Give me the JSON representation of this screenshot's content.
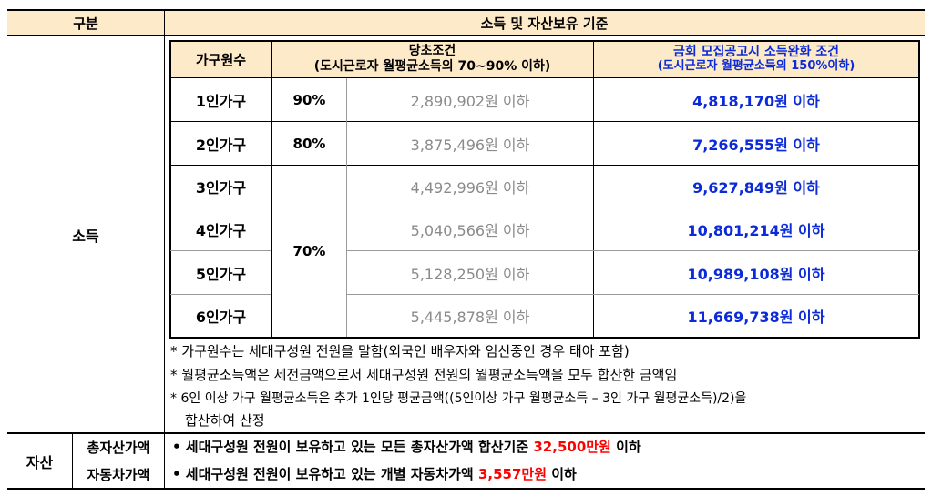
{
  "header": {
    "category": "구분",
    "criteria": "소득 및 자산보유 기준"
  },
  "income": {
    "label": "소득",
    "table_headers": {
      "household": "가구원수",
      "original_line1": "당초조건",
      "original_line2": "(도시근로자 월평균소득의 70~90% 이하)",
      "relaxed_line1": "금회 모집공고시 소득완화 조건",
      "relaxed_line2": "(도시근로자 월평균소득의 150%이하)"
    },
    "rows": [
      {
        "household": "1인가구",
        "original": "2,890,902원 이하",
        "relaxed": "4,818,170원 이하"
      },
      {
        "household": "2인가구",
        "original": "3,875,496원 이하",
        "relaxed": "7,266,555원 이하"
      },
      {
        "household": "3인가구",
        "original": "4,492,996원 이하",
        "relaxed": "9,627,849원 이하"
      },
      {
        "household": "4인가구",
        "original": "5,040,566원 이하",
        "relaxed": "10,801,214원 이하"
      },
      {
        "household": "5인가구",
        "original": "5,128,250원 이하",
        "relaxed": "10,989,108원 이하"
      },
      {
        "household": "6인가구",
        "original": "5,445,878원 이하",
        "relaxed": "11,669,738원 이하"
      }
    ],
    "percent": {
      "one": "90%",
      "two": "80%",
      "rest": "70%"
    },
    "notes": [
      "* 가구원수는 세대구성원 전원을 말함(외국인 배우자와 임신중인 경우 태아 포함)",
      "* 월평균소득액은 세전금액으로서 세대구성원 전원의 월평균소득액을 모두 합산한 금액임",
      "* 6인 이상 가구 월평균소득은 추가 1인당 평균금액((5인이상 가구 월평균소득 – 3인 가구 월평균소득)/2)을",
      "합산하여 산정"
    ]
  },
  "assets": {
    "label": "자산",
    "total": {
      "label": "총자산가액",
      "text_before": "• 세대구성원 전원이 보유하고 있는 모든 총자산가액 합산기준 ",
      "amount": "32,500만원",
      "text_after": " 이하"
    },
    "car": {
      "label": "자동차가액",
      "text_before": "• 세대구성원 전원이 보유하고 있는 개별 자동차가액 ",
      "amount": "3,557만원",
      "text_after": " 이하"
    }
  }
}
